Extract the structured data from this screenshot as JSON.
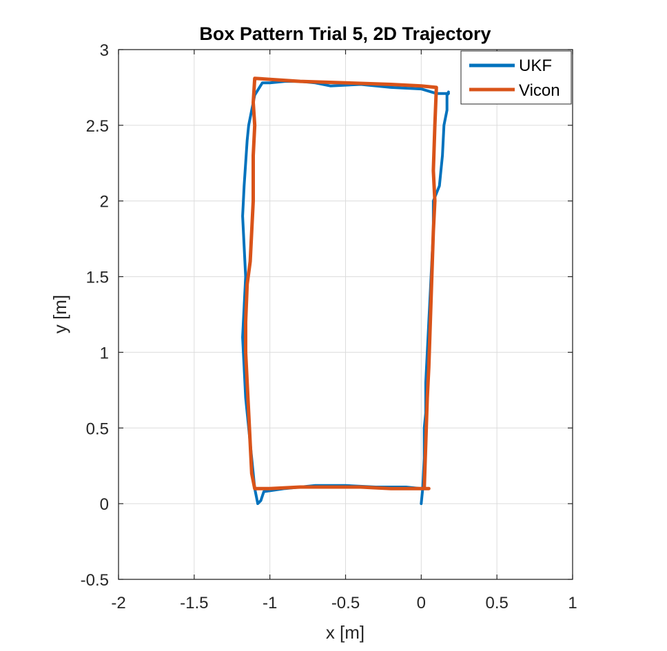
{
  "chart_data": {
    "type": "line",
    "title": "Box Pattern Trial 5, 2D Trajectory",
    "xlabel": "x [m]",
    "ylabel": "y [m]",
    "xlim": [
      -2,
      1
    ],
    "ylim": [
      -0.5,
      3
    ],
    "xticks": [
      -2,
      -1.5,
      -1,
      -0.5,
      0,
      0.5,
      1
    ],
    "xtick_labels": [
      "-2",
      "-1.5",
      "-1",
      "-0.5",
      "0",
      "0.5",
      "1"
    ],
    "yticks": [
      -0.5,
      0,
      0.5,
      1,
      1.5,
      2,
      2.5,
      3
    ],
    "ytick_labels": [
      "-0.5",
      "0",
      "0.5",
      "1",
      "1.5",
      "2",
      "2.5",
      "3"
    ],
    "grid": true,
    "legend_position": "top-right",
    "series": [
      {
        "name": "UKF",
        "color": "#0072BD",
        "x": [
          0.0,
          0.01,
          0.02,
          0.02,
          0.03,
          0.03,
          0.04,
          0.05,
          0.06,
          0.07,
          0.08,
          0.08,
          0.12,
          0.14,
          0.15,
          0.17,
          0.17,
          0.18,
          0.17,
          0.18,
          0.1,
          0.0,
          -0.2,
          -0.4,
          -0.6,
          -0.7,
          -0.8,
          -0.9,
          -1.0,
          -1.05,
          -1.1,
          -1.12,
          -1.14,
          -1.15,
          -1.17,
          -1.18,
          -1.17,
          -1.16,
          -1.17,
          -1.18,
          -1.17,
          -1.16,
          -1.14,
          -1.12,
          -1.1,
          -1.08,
          -1.06,
          -1.04,
          -0.9,
          -0.7,
          -0.5,
          -0.3,
          -0.1,
          0.0
        ],
        "y": [
          0.0,
          0.1,
          0.3,
          0.5,
          0.6,
          0.8,
          1.0,
          1.2,
          1.4,
          1.6,
          1.8,
          2.0,
          2.1,
          2.3,
          2.5,
          2.6,
          2.7,
          2.72,
          2.7,
          2.71,
          2.71,
          2.74,
          2.75,
          2.77,
          2.76,
          2.78,
          2.79,
          2.79,
          2.78,
          2.78,
          2.7,
          2.6,
          2.5,
          2.4,
          2.1,
          1.9,
          1.7,
          1.5,
          1.3,
          1.1,
          0.9,
          0.7,
          0.5,
          0.3,
          0.1,
          0.0,
          0.02,
          0.08,
          0.1,
          0.12,
          0.12,
          0.11,
          0.11,
          0.1
        ]
      },
      {
        "name": "Vicon",
        "color": "#D95319",
        "x": [
          0.05,
          -0.2,
          -0.4,
          -0.6,
          -0.8,
          -1.0,
          -1.1,
          -1.12,
          -1.13,
          -1.14,
          -1.15,
          -1.16,
          -1.16,
          -1.15,
          -1.13,
          -1.12,
          -1.11,
          -1.11,
          -1.1,
          -1.11,
          -1.1,
          -0.8,
          -0.5,
          -0.2,
          0.0,
          0.1,
          0.09,
          0.08,
          0.09,
          0.08,
          0.07,
          0.06,
          0.05,
          0.04,
          0.03,
          0.02
        ],
        "y": [
          0.1,
          0.1,
          0.11,
          0.11,
          0.11,
          0.1,
          0.1,
          0.2,
          0.4,
          0.6,
          0.8,
          1.0,
          1.2,
          1.45,
          1.6,
          1.8,
          2.0,
          2.3,
          2.5,
          2.65,
          2.81,
          2.79,
          2.78,
          2.77,
          2.76,
          2.75,
          2.5,
          2.2,
          2.0,
          1.8,
          1.5,
          1.2,
          0.9,
          0.7,
          0.4,
          0.1
        ]
      }
    ]
  }
}
